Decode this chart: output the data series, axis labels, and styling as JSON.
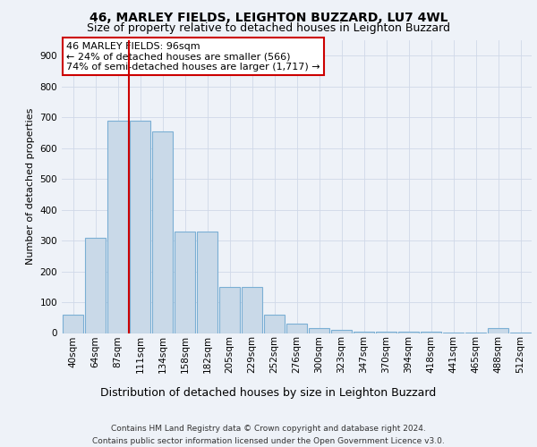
{
  "title1": "46, MARLEY FIELDS, LEIGHTON BUZZARD, LU7 4WL",
  "title2": "Size of property relative to detached houses in Leighton Buzzard",
  "xlabel": "Distribution of detached houses by size in Leighton Buzzard",
  "ylabel": "Number of detached properties",
  "footer": "Contains HM Land Registry data © Crown copyright and database right 2024.\nContains public sector information licensed under the Open Government Licence v3.0.",
  "bar_labels": [
    "40sqm",
    "64sqm",
    "87sqm",
    "111sqm",
    "134sqm",
    "158sqm",
    "182sqm",
    "205sqm",
    "229sqm",
    "252sqm",
    "276sqm",
    "300sqm",
    "323sqm",
    "347sqm",
    "370sqm",
    "394sqm",
    "418sqm",
    "441sqm",
    "465sqm",
    "488sqm",
    "512sqm"
  ],
  "bar_heights": [
    60,
    310,
    690,
    690,
    655,
    330,
    330,
    150,
    150,
    60,
    30,
    15,
    10,
    5,
    5,
    3,
    3,
    2,
    2,
    15,
    2
  ],
  "bar_color": "#c9d9e8",
  "bar_edgecolor": "#7bafd4",
  "bar_linewidth": 0.8,
  "grid_color": "#d0d8e8",
  "background_color": "#eef2f8",
  "red_line_x": 2.5,
  "red_line_color": "#cc0000",
  "annotation_text": "46 MARLEY FIELDS: 96sqm\n← 24% of detached houses are smaller (566)\n74% of semi-detached houses are larger (1,717) →",
  "annotation_box_color": "#ffffff",
  "annotation_box_edgecolor": "#cc0000",
  "ylim": [
    0,
    950
  ],
  "yticks": [
    0,
    100,
    200,
    300,
    400,
    500,
    600,
    700,
    800,
    900
  ],
  "title1_fontsize": 10,
  "title2_fontsize": 9,
  "xlabel_fontsize": 9,
  "ylabel_fontsize": 8,
  "tick_fontsize": 7.5,
  "annotation_fontsize": 8,
  "footer_fontsize": 6.5
}
